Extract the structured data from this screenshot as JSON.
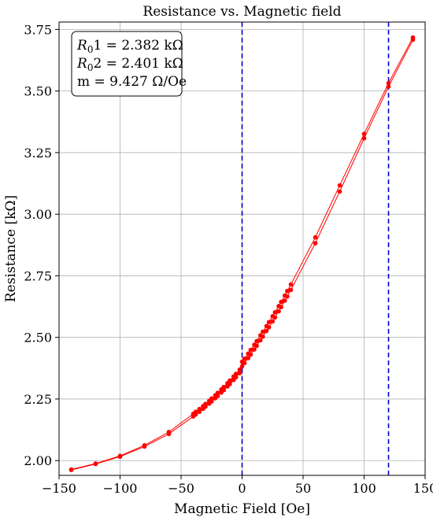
{
  "chart_data": {
    "type": "line",
    "title": "Resistance vs. Magnetic field",
    "xlabel": "Magnetic Field [Oe]",
    "ylabel": "Resistance [kΩ]",
    "xlim": [
      -150,
      150
    ],
    "ylim": [
      1.94,
      3.78
    ],
    "xticks": [
      -150,
      -100,
      -50,
      0,
      50,
      100,
      150
    ],
    "xtick_labels": [
      "−150",
      "−100",
      "−50",
      "0",
      "50",
      "100",
      "150"
    ],
    "yticks": [
      2.0,
      2.25,
      2.5,
      2.75,
      3.0,
      3.25,
      3.5,
      3.75
    ],
    "ytick_labels": [
      "2.00",
      "2.25",
      "2.50",
      "2.75",
      "3.00",
      "3.25",
      "3.50",
      "3.75"
    ],
    "grid": true,
    "colors": {
      "series": "#ff0000",
      "vlines": "#0000cc"
    },
    "vlines": [
      0,
      120
    ],
    "annotation": {
      "line1_italic": "R",
      "line1_sub": "0",
      "line1_rest": "1 = 2.382 kΩ",
      "line2_italic": "R",
      "line2_sub": "0",
      "line2_rest": "2 = 2.401 kΩ",
      "line3": "m = 9.427 Ω/Oe"
    },
    "series": [
      {
        "x": [
          -140,
          -120,
          -100,
          -80,
          -60,
          -40,
          -38,
          -35,
          -32,
          -30,
          -27,
          -25,
          -22,
          -20,
          -17,
          -15,
          -12,
          -10,
          -7,
          -5,
          -2,
          0,
          2,
          5,
          7,
          10,
          12,
          15,
          17,
          20,
          22,
          25,
          27,
          30,
          32,
          35,
          37,
          40,
          60,
          80,
          100,
          120,
          140
        ],
        "y": [
          1.962,
          1.986,
          2.016,
          2.057,
          2.108,
          2.179,
          2.187,
          2.198,
          2.21,
          2.219,
          2.231,
          2.24,
          2.253,
          2.262,
          2.276,
          2.286,
          2.301,
          2.311,
          2.327,
          2.338,
          2.355,
          2.382,
          2.396,
          2.416,
          2.43,
          2.451,
          2.466,
          2.488,
          2.503,
          2.526,
          2.541,
          2.565,
          2.581,
          2.606,
          2.623,
          2.649,
          2.666,
          2.693,
          2.882,
          3.092,
          3.308,
          3.518,
          3.708
        ]
      },
      {
        "x": [
          -140,
          -120,
          -100,
          -80,
          -60,
          -40,
          -38,
          -35,
          -32,
          -30,
          -27,
          -25,
          -22,
          -20,
          -17,
          -15,
          -12,
          -10,
          -7,
          -5,
          -2,
          0,
          2,
          5,
          7,
          10,
          12,
          15,
          17,
          20,
          22,
          25,
          27,
          30,
          32,
          35,
          37,
          40,
          60,
          80,
          100,
          120,
          140
        ],
        "y": [
          1.964,
          1.988,
          2.019,
          2.062,
          2.116,
          2.19,
          2.198,
          2.209,
          2.221,
          2.23,
          2.242,
          2.252,
          2.265,
          2.275,
          2.289,
          2.299,
          2.314,
          2.325,
          2.341,
          2.352,
          2.369,
          2.401,
          2.414,
          2.434,
          2.449,
          2.47,
          2.485,
          2.508,
          2.523,
          2.546,
          2.562,
          2.586,
          2.602,
          2.627,
          2.644,
          2.67,
          2.688,
          2.715,
          2.906,
          3.117,
          3.326,
          3.532,
          3.717
        ]
      }
    ]
  }
}
